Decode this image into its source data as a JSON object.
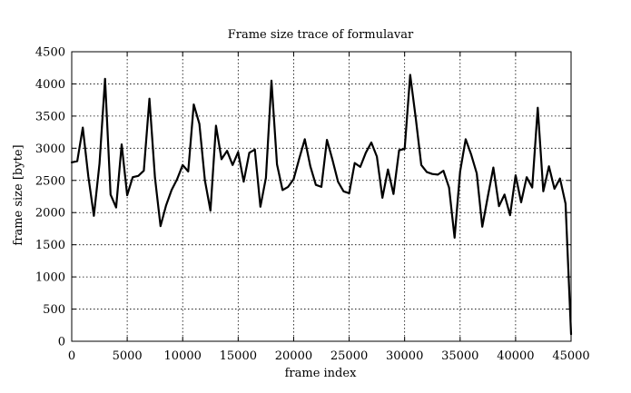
{
  "chart_data": {
    "type": "line",
    "title": "Frame size trace of formulavar",
    "xlabel": "frame index",
    "ylabel": "frame size [byte]",
    "xlim": [
      0,
      45000
    ],
    "ylim": [
      0,
      4500
    ],
    "xticks": [
      0,
      5000,
      10000,
      15000,
      20000,
      25000,
      30000,
      35000,
      40000,
      45000
    ],
    "yticks": [
      0,
      500,
      1000,
      1500,
      2000,
      2500,
      3000,
      3500,
      4000,
      4500
    ],
    "grid": true,
    "series": [
      {
        "x": [
          0,
          500,
          1000,
          1500,
          2000,
          2500,
          3000,
          3500,
          4000,
          4500,
          5000,
          5500,
          6000,
          6500,
          7000,
          7500,
          8000,
          8500,
          9000,
          9500,
          10000,
          10500,
          11000,
          11500,
          12000,
          12500,
          13000,
          13500,
          14000,
          14500,
          15000,
          15500,
          16000,
          16500,
          17000,
          17500,
          18000,
          18500,
          19000,
          19500,
          20000,
          20500,
          21000,
          21500,
          22000,
          22500,
          23000,
          23500,
          24000,
          24500,
          25000,
          25500,
          26000,
          26500,
          27000,
          27500,
          28000,
          28500,
          29000,
          29500,
          30000,
          30500,
          31000,
          31500,
          32000,
          32500,
          33000,
          33500,
          34000,
          34500,
          35000,
          35500,
          36000,
          36500,
          37000,
          37500,
          38000,
          38500,
          39000,
          39500,
          40000,
          40500,
          41000,
          41500,
          42000,
          42500,
          43000,
          43500,
          44000,
          44500,
          45000
        ],
        "values": [
          2780,
          2800,
          3320,
          2560,
          1950,
          2760,
          4080,
          2280,
          2080,
          3060,
          2270,
          2550,
          2570,
          2650,
          3770,
          2540,
          1790,
          2110,
          2350,
          2520,
          2740,
          2640,
          3680,
          3380,
          2500,
          2030,
          3350,
          2830,
          2960,
          2740,
          2940,
          2480,
          2930,
          2980,
          2090,
          2540,
          4050,
          2750,
          2350,
          2400,
          2520,
          2840,
          3140,
          2720,
          2430,
          2400,
          3130,
          2820,
          2480,
          2330,
          2300,
          2770,
          2710,
          2930,
          3090,
          2870,
          2230,
          2670,
          2290,
          2970,
          2990,
          4140,
          3470,
          2740,
          2630,
          2600,
          2590,
          2650,
          2390,
          1610,
          2640,
          3140,
          2900,
          2610,
          1780,
          2250,
          2700,
          2100,
          2280,
          1960,
          2580,
          2160,
          2550,
          2390,
          3630,
          2330,
          2720,
          2370,
          2530,
          2140,
          110
        ]
      }
    ]
  }
}
